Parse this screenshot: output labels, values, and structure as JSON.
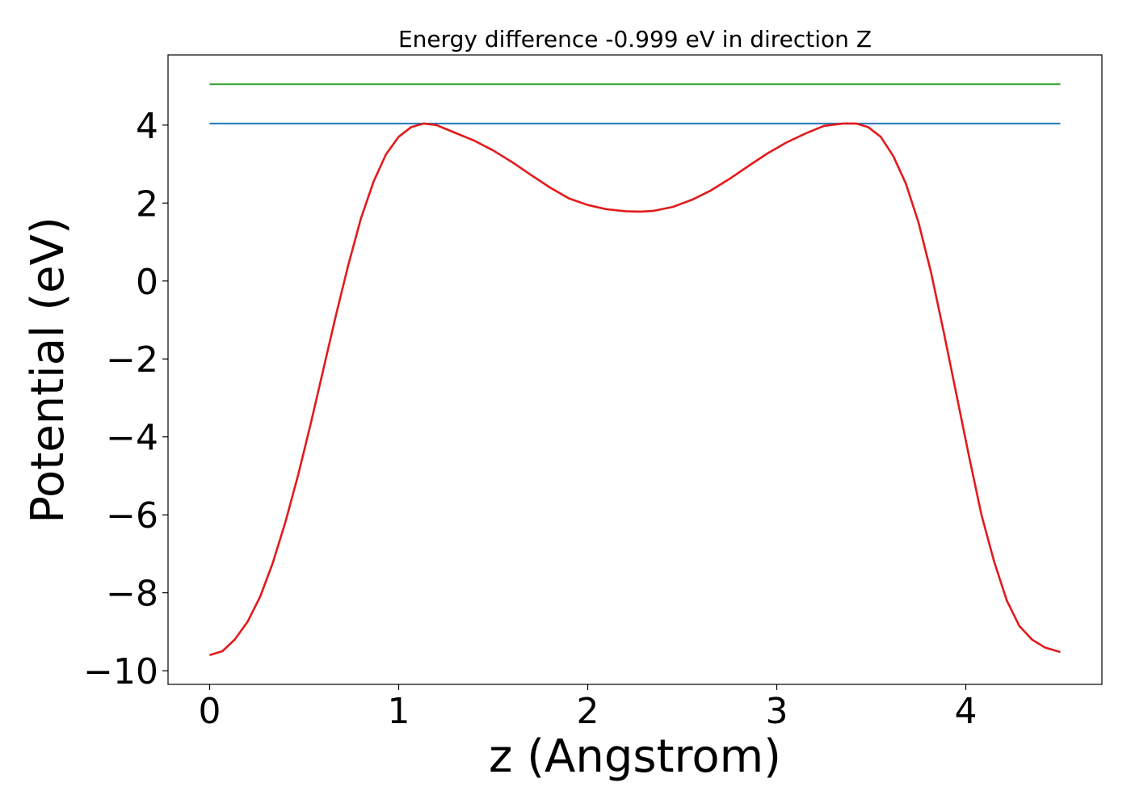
{
  "chart_data": {
    "type": "line",
    "title": "Energy difference -0.999 eV in direction Z",
    "xlabel": "z (Angstrom)",
    "ylabel": "Potential (eV)",
    "xlim": [
      -0.22,
      4.72
    ],
    "ylim": [
      -10.35,
      5.8
    ],
    "grid": false,
    "xticks": [
      0,
      1,
      2,
      3,
      4
    ],
    "xtick_labels": [
      "0",
      "1",
      "2",
      "3",
      "4"
    ],
    "yticks": [
      -10,
      -8,
      -6,
      -4,
      -2,
      0,
      2,
      4
    ],
    "ytick_labels": [
      "−10",
      "−8",
      "−6",
      "−4",
      "−2",
      "0",
      "2",
      "4"
    ],
    "series": [
      {
        "color": "#2ca02c",
        "x": [
          0,
          4.5
        ],
        "y": [
          5.05,
          5.05
        ]
      },
      {
        "color": "#1f77b4",
        "x": [
          0,
          4.5
        ],
        "y": [
          4.04,
          4.04
        ]
      },
      {
        "color": "#e31a1c",
        "x": [
          0,
          0.067,
          0.133,
          0.2,
          0.267,
          0.333,
          0.4,
          0.467,
          0.533,
          0.6,
          0.667,
          0.733,
          0.8,
          0.867,
          0.933,
          1.0,
          1.067,
          1.133,
          1.2,
          1.3,
          1.4,
          1.5,
          1.6,
          1.7,
          1.8,
          1.9,
          2.0,
          2.1,
          2.2,
          2.28,
          2.35,
          2.45,
          2.55,
          2.65,
          2.75,
          2.85,
          2.95,
          3.05,
          3.15,
          3.25,
          3.35,
          3.42,
          3.483,
          3.55,
          3.617,
          3.683,
          3.75,
          3.817,
          3.883,
          3.95,
          4.017,
          4.083,
          4.15,
          4.217,
          4.283,
          4.35,
          4.417,
          4.5
        ],
        "y": [
          -9.6,
          -9.5,
          -9.2,
          -8.75,
          -8.1,
          -7.25,
          -6.2,
          -5.0,
          -3.7,
          -2.3,
          -0.9,
          0.4,
          1.6,
          2.55,
          3.25,
          3.7,
          3.95,
          4.04,
          4.0,
          3.8,
          3.6,
          3.35,
          3.05,
          2.72,
          2.4,
          2.12,
          1.95,
          1.84,
          1.79,
          1.78,
          1.8,
          1.9,
          2.08,
          2.32,
          2.62,
          2.95,
          3.27,
          3.55,
          3.78,
          3.98,
          4.04,
          4.04,
          3.95,
          3.7,
          3.2,
          2.5,
          1.5,
          0.2,
          -1.3,
          -2.9,
          -4.5,
          -6.0,
          -7.2,
          -8.2,
          -8.85,
          -9.2,
          -9.4,
          -9.52
        ]
      }
    ]
  }
}
